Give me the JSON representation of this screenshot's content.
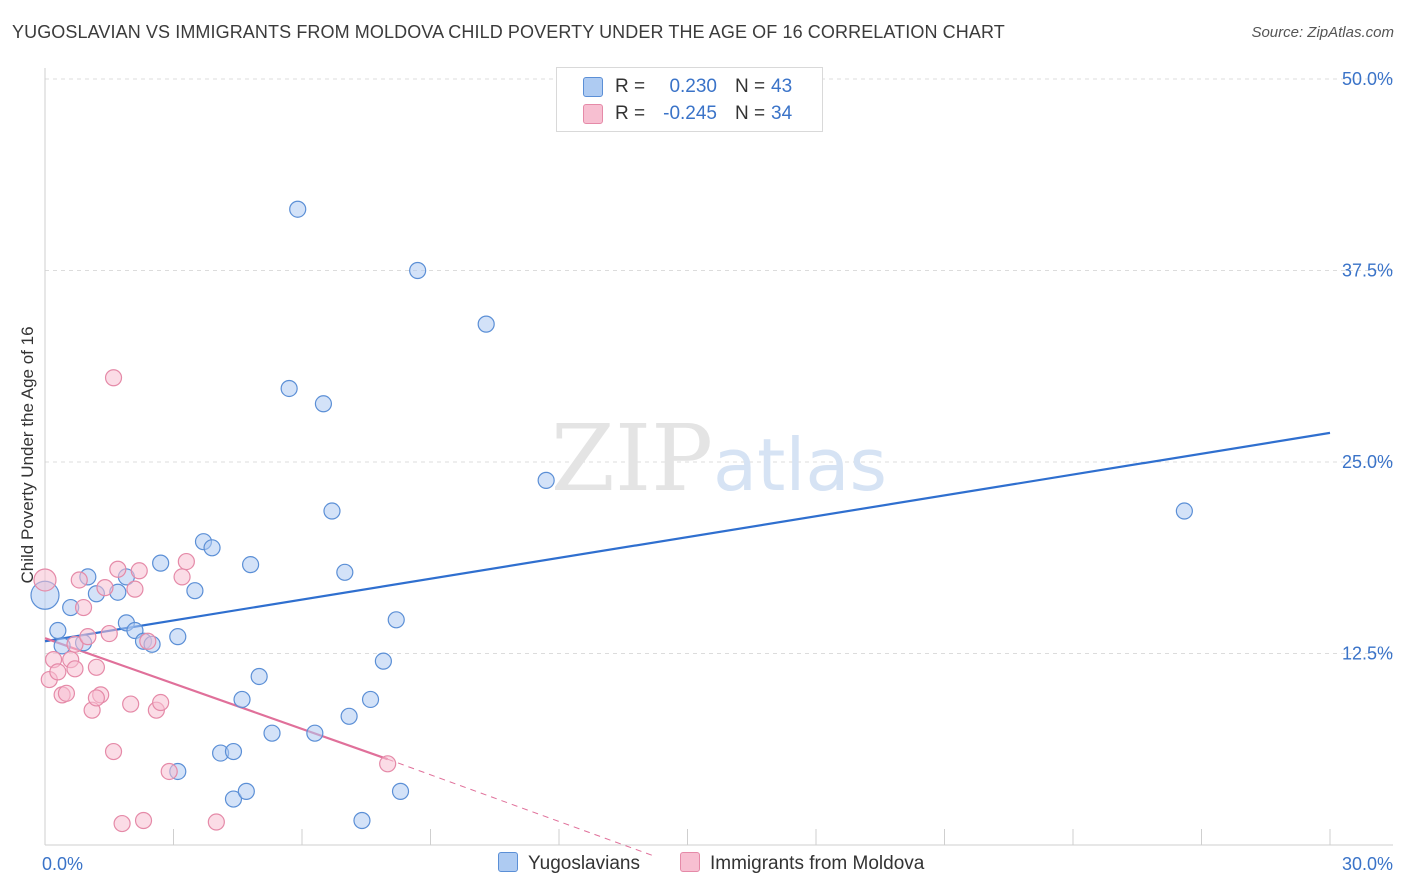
{
  "title": "YUGOSLAVIAN VS IMMIGRANTS FROM MOLDOVA CHILD POVERTY UNDER THE AGE OF 16 CORRELATION CHART",
  "source": "Source: ZipAtlas.com",
  "watermark": {
    "zip": "ZIP",
    "atlas": "atlas"
  },
  "colors": {
    "blue_fill": "#aecbf2",
    "blue_stroke": "#5b8fd6",
    "blue_line": "#2f6fcf",
    "pink_fill": "#f7bfd1",
    "pink_stroke": "#e58aa8",
    "pink_line": "#e0709a",
    "axis_text": "#3a73c8",
    "grid": "#dcdcdc"
  },
  "legend": {
    "rows": [
      {
        "r_label": "R =",
        "r_value": "0.230",
        "n_label": "N =",
        "n_value": "43",
        "color": "#aecbf2",
        "stroke": "#5b8fd6"
      },
      {
        "r_label": "R =",
        "r_value": "-0.245",
        "n_label": "N =",
        "n_value": "34",
        "color": "#f7bfd1",
        "stroke": "#e58aa8"
      }
    ]
  },
  "bottom_legend": [
    {
      "label": "Yugoslavians",
      "color": "#aecbf2",
      "stroke": "#5b8fd6"
    },
    {
      "label": "Immigrants from Moldova",
      "color": "#f7bfd1",
      "stroke": "#e58aa8"
    }
  ],
  "chart_data": {
    "type": "scatter",
    "title": "YUGOSLAVIAN VS IMMIGRANTS FROM MOLDOVA CHILD POVERTY UNDER THE AGE OF 16 CORRELATION CHART",
    "xlabel": "",
    "ylabel": "Child Poverty Under the Age of 16",
    "xlim": [
      0,
      30
    ],
    "ylim": [
      0,
      50
    ],
    "x_tick_labels": [
      {
        "value": 0,
        "label": "0.0%"
      },
      {
        "value": 30,
        "label": "30.0%"
      }
    ],
    "y_tick_labels": [
      {
        "value": 12.5,
        "label": "12.5%"
      },
      {
        "value": 25,
        "label": "25.0%"
      },
      {
        "value": 37.5,
        "label": "37.5%"
      },
      {
        "value": 50,
        "label": "50.0%"
      }
    ],
    "y_gridlines": [
      12.5,
      25,
      37.5,
      50
    ],
    "x_minor_ticks": [
      3,
      6,
      9,
      12,
      15,
      18,
      21,
      24,
      27,
      30
    ],
    "series": [
      {
        "name": "Yugoslavians",
        "color": "#aecbf2",
        "points": [
          [
            0.0,
            16.3,
            14
          ],
          [
            0.3,
            14.0,
            8
          ],
          [
            0.4,
            13.0,
            8
          ],
          [
            0.6,
            15.5,
            8
          ],
          [
            0.9,
            13.2,
            8
          ],
          [
            1.0,
            17.5,
            8
          ],
          [
            1.2,
            16.4,
            8
          ],
          [
            1.7,
            16.5,
            8
          ],
          [
            1.9,
            17.5,
            8
          ],
          [
            1.9,
            14.5,
            8
          ],
          [
            2.1,
            14.0,
            8
          ],
          [
            2.3,
            13.3,
            8
          ],
          [
            2.5,
            13.1,
            8
          ],
          [
            2.7,
            18.4,
            8
          ],
          [
            3.1,
            13.6,
            8
          ],
          [
            3.5,
            16.6,
            8
          ],
          [
            3.7,
            19.8,
            8
          ],
          [
            3.9,
            19.4,
            8
          ],
          [
            4.1,
            6.0,
            8
          ],
          [
            4.4,
            3.0,
            8
          ],
          [
            4.6,
            9.5,
            8
          ],
          [
            4.7,
            3.5,
            8
          ],
          [
            4.8,
            18.3,
            8
          ],
          [
            5.0,
            11.0,
            8
          ],
          [
            5.3,
            7.3,
            8
          ],
          [
            5.7,
            29.8,
            8
          ],
          [
            5.9,
            41.5,
            8
          ],
          [
            6.3,
            7.3,
            8
          ],
          [
            6.5,
            28.8,
            8
          ],
          [
            6.7,
            21.8,
            8
          ],
          [
            7.0,
            17.8,
            8
          ],
          [
            7.1,
            8.4,
            8
          ],
          [
            7.4,
            1.6,
            8
          ],
          [
            7.6,
            9.5,
            8
          ],
          [
            7.9,
            12.0,
            8
          ],
          [
            8.2,
            14.7,
            8
          ],
          [
            8.3,
            3.5,
            8
          ],
          [
            8.7,
            37.5,
            8
          ],
          [
            4.4,
            6.1,
            8
          ],
          [
            3.1,
            4.8,
            8
          ],
          [
            10.3,
            34.0,
            8
          ],
          [
            11.7,
            23.8,
            8
          ],
          [
            26.6,
            21.8,
            8
          ]
        ]
      },
      {
        "name": "Immigrants from Moldova",
        "color": "#f7bfd1",
        "points": [
          [
            0.0,
            17.3,
            11
          ],
          [
            0.1,
            10.8,
            8
          ],
          [
            0.2,
            12.1,
            8
          ],
          [
            0.3,
            11.3,
            8
          ],
          [
            0.4,
            9.8,
            8
          ],
          [
            0.5,
            9.9,
            8
          ],
          [
            0.6,
            12.1,
            8
          ],
          [
            0.7,
            13.1,
            8
          ],
          [
            0.7,
            11.5,
            8
          ],
          [
            0.8,
            17.3,
            8
          ],
          [
            0.9,
            15.5,
            8
          ],
          [
            1.0,
            13.6,
            8
          ],
          [
            1.1,
            8.8,
            8
          ],
          [
            1.2,
            11.6,
            8
          ],
          [
            1.3,
            9.8,
            8
          ],
          [
            1.4,
            16.8,
            8
          ],
          [
            1.5,
            13.8,
            8
          ],
          [
            1.6,
            6.1,
            8
          ],
          [
            1.6,
            30.5,
            8
          ],
          [
            1.7,
            18.0,
            8
          ],
          [
            1.8,
            1.4,
            8
          ],
          [
            2.0,
            9.2,
            8
          ],
          [
            2.1,
            16.7,
            8
          ],
          [
            2.2,
            17.9,
            8
          ],
          [
            2.3,
            1.6,
            8
          ],
          [
            2.4,
            13.3,
            8
          ],
          [
            2.6,
            8.8,
            8
          ],
          [
            2.7,
            9.3,
            8
          ],
          [
            2.9,
            4.8,
            8
          ],
          [
            3.2,
            17.5,
            8
          ],
          [
            3.3,
            18.5,
            8
          ],
          [
            4.0,
            1.5,
            8
          ],
          [
            8.0,
            5.3,
            8
          ],
          [
            1.2,
            9.6,
            8
          ]
        ]
      }
    ],
    "trendlines": [
      {
        "series": "Yugoslavians",
        "x0": 0,
        "y0": 13.3,
        "x1": 30,
        "y1": 26.9,
        "style": "solid"
      },
      {
        "series": "Immigrants from Moldova",
        "x0": 0,
        "y0": 13.5,
        "x1": 8.0,
        "y1": 5.6,
        "style": "solid"
      },
      {
        "series": "Immigrants from Moldova",
        "x0": 8.0,
        "y0": 5.6,
        "x1": 14.2,
        "y1": -0.7,
        "style": "dashed"
      }
    ]
  }
}
